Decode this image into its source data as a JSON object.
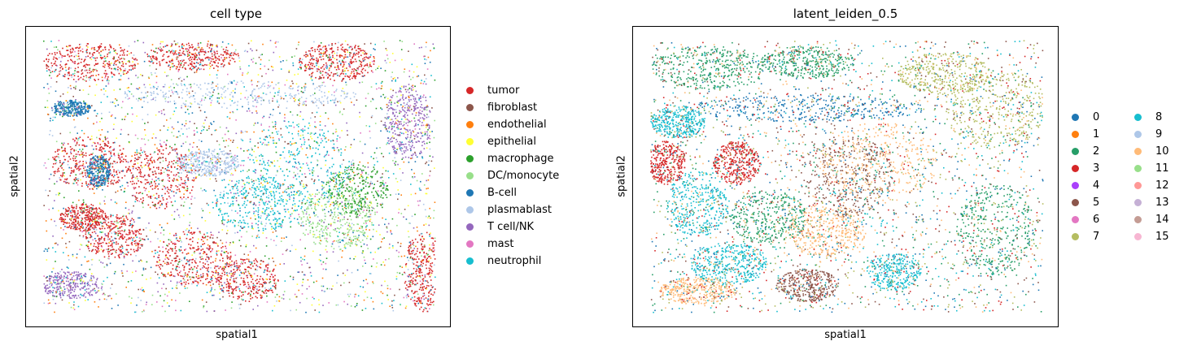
{
  "chart_data": [
    {
      "type": "scatter",
      "title": "cell type",
      "xlabel": "spatial1",
      "ylabel": "spatial2",
      "xticks": [],
      "yticks": [],
      "legend_placement": "right",
      "legend_columns": 1,
      "categories": [
        {
          "name": "tumor",
          "color": "#d62728"
        },
        {
          "name": "fibroblast",
          "color": "#8c564b"
        },
        {
          "name": "endothelial",
          "color": "#ff7f0e"
        },
        {
          "name": "epithelial",
          "color": "#ffff33"
        },
        {
          "name": "macrophage",
          "color": "#2ca02c"
        },
        {
          "name": "DC/monocyte",
          "color": "#98df8a"
        },
        {
          "name": "B-cell",
          "color": "#1f77b4"
        },
        {
          "name": "plasmablast",
          "color": "#aec7e8"
        },
        {
          "name": "T cell/NK",
          "color": "#9467bd"
        },
        {
          "name": "mast",
          "color": "#e377c2"
        },
        {
          "name": "neutrophil",
          "color": "#17becf"
        }
      ]
    },
    {
      "type": "scatter",
      "title": "latent_leiden_0.5",
      "xlabel": "spatial1",
      "ylabel": "spatial2",
      "xticks": [],
      "yticks": [],
      "legend_placement": "right",
      "legend_columns": 2,
      "categories": [
        {
          "name": "0",
          "color": "#1f77b4"
        },
        {
          "name": "1",
          "color": "#ff7f0e"
        },
        {
          "name": "2",
          "color": "#279e68"
        },
        {
          "name": "3",
          "color": "#d62728"
        },
        {
          "name": "4",
          "color": "#aa40fc"
        },
        {
          "name": "5",
          "color": "#8c564b"
        },
        {
          "name": "6",
          "color": "#e377c2"
        },
        {
          "name": "7",
          "color": "#b5bd61"
        },
        {
          "name": "8",
          "color": "#17becf"
        },
        {
          "name": "9",
          "color": "#aec7e8"
        },
        {
          "name": "10",
          "color": "#ffbb78"
        },
        {
          "name": "11",
          "color": "#98df8a"
        },
        {
          "name": "12",
          "color": "#ff9896"
        },
        {
          "name": "13",
          "color": "#c5b0d5"
        },
        {
          "name": "14",
          "color": "#c49c94"
        },
        {
          "name": "15",
          "color": "#f7b6d2"
        }
      ]
    }
  ]
}
